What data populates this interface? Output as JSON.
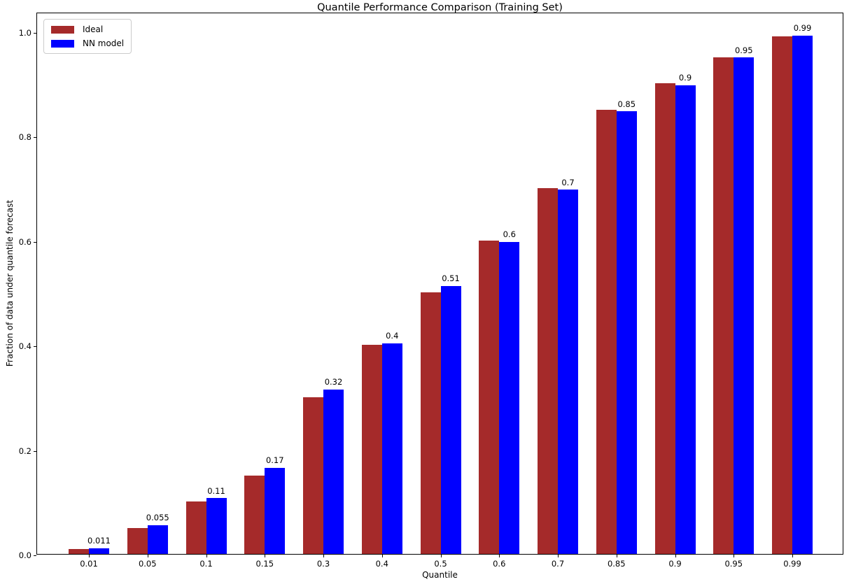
{
  "chart_data": {
    "type": "bar",
    "title": "Quantile Performance Comparison (Training Set)",
    "xlabel": "Quantile",
    "ylabel": "Fraction of data under quantile forecast",
    "categories": [
      "0.01",
      "0.05",
      "0.1",
      "0.15",
      "0.3",
      "0.4",
      "0.5",
      "0.6",
      "0.7",
      "0.85",
      "0.9",
      "0.95",
      "0.99"
    ],
    "series": [
      {
        "name": "Ideal",
        "color": "#a52a2a",
        "values": [
          0.01,
          0.05,
          0.1,
          0.15,
          0.3,
          0.4,
          0.5,
          0.6,
          0.7,
          0.85,
          0.9,
          0.95,
          0.99
        ]
      },
      {
        "name": "NN model",
        "color": "#0000ff",
        "values": [
          0.011,
          0.055,
          0.107,
          0.165,
          0.315,
          0.403,
          0.513,
          0.597,
          0.697,
          0.847,
          0.897,
          0.95,
          0.992
        ],
        "bar_labels": [
          "0.011",
          "0.055",
          "0.11",
          "0.17",
          "0.32",
          "0.4",
          "0.51",
          "0.6",
          "0.7",
          "0.85",
          "0.9",
          "0.95",
          "0.99"
        ]
      }
    ],
    "yticks": [
      "0.0",
      "0.2",
      "0.4",
      "0.6",
      "0.8",
      "1.0"
    ],
    "ylim": [
      0,
      1.037
    ],
    "grid": false,
    "legend_position": "upper left"
  }
}
